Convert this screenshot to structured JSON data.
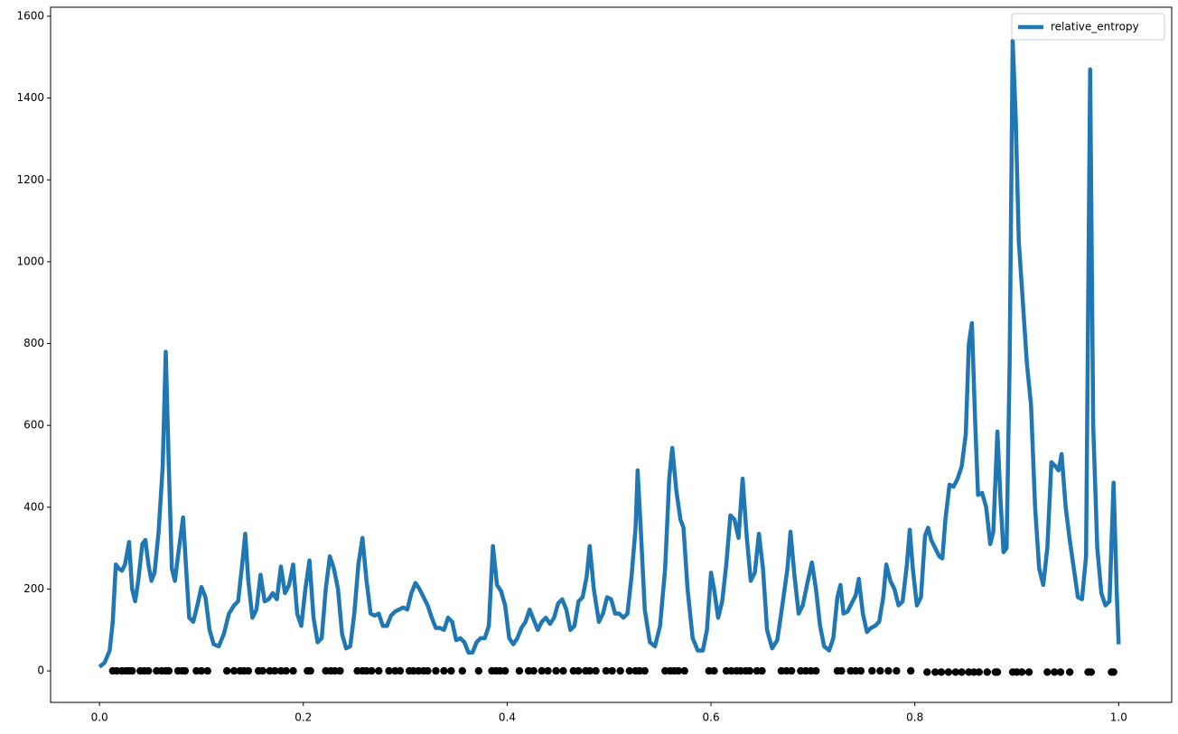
{
  "chart_data": {
    "type": "line",
    "xlim": [
      -0.048,
      1.052
    ],
    "ylim": [
      -77,
      1622
    ],
    "xticks": [
      {
        "value": 0,
        "label": "0.0"
      },
      0.2,
      0.4,
      0.6,
      0.8,
      {
        "value": 1,
        "label": "1.0"
      }
    ],
    "yticks": [
      0,
      200,
      400,
      600,
      800,
      1000,
      1200,
      1400,
      1600
    ],
    "grid": false,
    "legend": "upper right",
    "series": [
      {
        "name": "relative_entropy",
        "type": "line",
        "color": "#1f77b4",
        "x": [
          0,
          0.005,
          0.01,
          0.013,
          0.016,
          0.019,
          0.022,
          0.025,
          0.029,
          0.032,
          0.035,
          0.038,
          0.042,
          0.045,
          0.048,
          0.051,
          0.054,
          0.058,
          0.062,
          0.065,
          0.068,
          0.071,
          0.074,
          0.078,
          0.082,
          0.085,
          0.088,
          0.092,
          0.096,
          0.1,
          0.104,
          0.108,
          0.112,
          0.117,
          0.122,
          0.127,
          0.132,
          0.136,
          0.14,
          0.143,
          0.146,
          0.15,
          0.154,
          0.158,
          0.162,
          0.166,
          0.17,
          0.174,
          0.178,
          0.182,
          0.186,
          0.19,
          0.194,
          0.198,
          0.202,
          0.206,
          0.21,
          0.214,
          0.218,
          0.222,
          0.226,
          0.23,
          0.234,
          0.238,
          0.242,
          0.246,
          0.25,
          0.254,
          0.258,
          0.262,
          0.266,
          0.27,
          0.274,
          0.278,
          0.282,
          0.286,
          0.29,
          0.294,
          0.298,
          0.302,
          0.306,
          0.31,
          0.314,
          0.318,
          0.322,
          0.326,
          0.33,
          0.334,
          0.338,
          0.342,
          0.346,
          0.35,
          0.354,
          0.358,
          0.362,
          0.366,
          0.37,
          0.374,
          0.378,
          0.382,
          0.386,
          0.39,
          0.394,
          0.398,
          0.402,
          0.406,
          0.41,
          0.414,
          0.418,
          0.422,
          0.426,
          0.43,
          0.434,
          0.438,
          0.442,
          0.446,
          0.45,
          0.454,
          0.458,
          0.462,
          0.466,
          0.47,
          0.474,
          0.478,
          0.481,
          0.485,
          0.49,
          0.494,
          0.498,
          0.502,
          0.506,
          0.51,
          0.514,
          0.518,
          0.522,
          0.526,
          0.528,
          0.531,
          0.535,
          0.54,
          0.545,
          0.55,
          0.555,
          0.559,
          0.562,
          0.566,
          0.57,
          0.573,
          0.577,
          0.582,
          0.587,
          0.592,
          0.596,
          0.6,
          0.603,
          0.607,
          0.611,
          0.615,
          0.619,
          0.623,
          0.627,
          0.631,
          0.635,
          0.639,
          0.643,
          0.647,
          0.651,
          0.655,
          0.66,
          0.665,
          0.67,
          0.675,
          0.678,
          0.682,
          0.686,
          0.69,
          0.695,
          0.699,
          0.703,
          0.707,
          0.711,
          0.716,
          0.72,
          0.724,
          0.727,
          0.73,
          0.734,
          0.738,
          0.742,
          0.745,
          0.749,
          0.753,
          0.757,
          0.761,
          0.765,
          0.769,
          0.772,
          0.776,
          0.78,
          0.784,
          0.788,
          0.792,
          0.795,
          0.798,
          0.802,
          0.806,
          0.81,
          0.813,
          0.816,
          0.82,
          0.824,
          0.827,
          0.83,
          0.834,
          0.838,
          0.842,
          0.846,
          0.85,
          0.853,
          0.856,
          0.859,
          0.862,
          0.866,
          0.87,
          0.874,
          0.877,
          0.881,
          0.884,
          0.887,
          0.89,
          0.893,
          0.896,
          0.899,
          0.902,
          0.906,
          0.91,
          0.914,
          0.918,
          0.922,
          0.926,
          0.93,
          0.934,
          0.938,
          0.941,
          0.944,
          0.948,
          0.952,
          0.956,
          0.96,
          0.964,
          0.968,
          0.972,
          0.975,
          0.979,
          0.983,
          0.987,
          0.991,
          0.995,
          0.998,
          1.0
        ],
        "values": [
          10,
          20,
          50,
          120,
          260,
          250,
          245,
          260,
          315,
          200,
          170,
          220,
          310,
          320,
          260,
          220,
          240,
          340,
          500,
          780,
          500,
          250,
          220,
          300,
          375,
          250,
          130,
          120,
          160,
          205,
          180,
          100,
          65,
          60,
          90,
          140,
          160,
          170,
          260,
          335,
          220,
          130,
          150,
          235,
          170,
          175,
          190,
          175,
          255,
          190,
          210,
          260,
          140,
          110,
          200,
          270,
          130,
          70,
          80,
          200,
          280,
          250,
          200,
          90,
          55,
          60,
          140,
          260,
          325,
          220,
          140,
          135,
          140,
          110,
          110,
          135,
          145,
          150,
          155,
          150,
          190,
          215,
          200,
          180,
          160,
          130,
          105,
          105,
          100,
          130,
          120,
          75,
          80,
          70,
          45,
          45,
          70,
          80,
          80,
          110,
          305,
          210,
          195,
          160,
          80,
          65,
          80,
          105,
          120,
          150,
          125,
          100,
          120,
          130,
          115,
          130,
          165,
          175,
          150,
          100,
          110,
          170,
          180,
          230,
          305,
          200,
          120,
          140,
          180,
          175,
          140,
          140,
          130,
          140,
          230,
          350,
          490,
          350,
          150,
          70,
          60,
          110,
          250,
          470,
          545,
          440,
          370,
          350,
          200,
          80,
          50,
          50,
          100,
          240,
          200,
          130,
          170,
          260,
          380,
          370,
          325,
          470,
          330,
          220,
          240,
          335,
          250,
          100,
          55,
          75,
          160,
          250,
          340,
          230,
          140,
          160,
          220,
          265,
          200,
          110,
          60,
          50,
          80,
          180,
          210,
          140,
          145,
          165,
          185,
          225,
          140,
          95,
          105,
          110,
          120,
          180,
          260,
          220,
          200,
          160,
          170,
          255,
          345,
          250,
          160,
          180,
          330,
          350,
          320,
          300,
          280,
          275,
          370,
          455,
          450,
          470,
          500,
          580,
          800,
          850,
          620,
          430,
          435,
          400,
          310,
          340,
          585,
          420,
          290,
          300,
          750,
          1540,
          1350,
          1050,
          900,
          750,
          650,
          400,
          250,
          210,
          300,
          510,
          500,
          490,
          530,
          400,
          320,
          250,
          180,
          175,
          280,
          1470,
          600,
          300,
          190,
          160,
          170,
          460,
          200,
          65
        ]
      },
      {
        "type": "scatter",
        "color": "#000000",
        "x": [
          0.013,
          0.017,
          0.022,
          0.026,
          0.029,
          0.032,
          0.04,
          0.044,
          0.048,
          0.056,
          0.061,
          0.065,
          0.068,
          0.077,
          0.081,
          0.084,
          0.095,
          0.1,
          0.106,
          0.125,
          0.132,
          0.138,
          0.142,
          0.146,
          0.156,
          0.16,
          0.167,
          0.172,
          0.178,
          0.183,
          0.19,
          0.204,
          0.207,
          0.222,
          0.227,
          0.231,
          0.236,
          0.253,
          0.258,
          0.262,
          0.267,
          0.274,
          0.284,
          0.29,
          0.295,
          0.304,
          0.308,
          0.313,
          0.318,
          0.322,
          0.33,
          0.338,
          0.345,
          0.356,
          0.372,
          0.385,
          0.389,
          0.393,
          0.398,
          0.412,
          0.421,
          0.426,
          0.434,
          0.44,
          0.448,
          0.455,
          0.465,
          0.47,
          0.477,
          0.481,
          0.487,
          0.497,
          0.503,
          0.511,
          0.52,
          0.526,
          0.53,
          0.535,
          0.555,
          0.56,
          0.564,
          0.568,
          0.574,
          0.598,
          0.603,
          0.615,
          0.62,
          0.625,
          0.629,
          0.634,
          0.638,
          0.645,
          0.65,
          0.669,
          0.674,
          0.679,
          0.688,
          0.693,
          0.698,
          0.703,
          0.724,
          0.728,
          0.737,
          0.742,
          0.747,
          0.758,
          0.766,
          0.774,
          0.782,
          0.796,
          0.812,
          0.82,
          0.826,
          0.833,
          0.84,
          0.846,
          0.853,
          0.858,
          0.863,
          0.871,
          0.879,
          0.881,
          0.896,
          0.9,
          0.905,
          0.912,
          0.93,
          0.937,
          0.943,
          0.952,
          0.97,
          0.973,
          0.993,
          0.995
        ],
        "values": [
          0,
          0,
          0,
          0,
          0,
          0,
          0,
          0,
          0,
          0,
          0,
          0,
          0,
          0,
          0,
          0,
          0,
          0,
          0,
          0,
          0,
          0,
          0,
          0,
          0,
          0,
          0,
          0,
          0,
          0,
          0,
          0,
          0,
          0,
          0,
          0,
          0,
          0,
          0,
          0,
          0,
          0,
          0,
          0,
          0,
          0,
          0,
          0,
          0,
          0,
          0,
          0,
          0,
          0,
          0,
          0,
          0,
          0,
          0,
          0,
          0,
          0,
          0,
          0,
          0,
          0,
          0,
          0,
          0,
          0,
          0,
          0,
          0,
          0,
          0,
          0,
          0,
          0,
          0,
          0,
          0,
          0,
          0,
          0,
          0,
          0,
          0,
          0,
          0,
          0,
          0,
          0,
          0,
          0,
          0,
          0,
          0,
          0,
          0,
          0,
          0,
          0,
          0,
          0,
          0,
          0,
          0,
          0,
          0,
          0,
          -3,
          -3,
          -3,
          -3,
          -3,
          -3,
          -3,
          -3,
          -3,
          -3,
          -3,
          -3,
          -3,
          -3,
          -3,
          -3,
          -3,
          -3,
          -3,
          -3,
          -3,
          -3,
          -3,
          -3
        ]
      }
    ]
  }
}
